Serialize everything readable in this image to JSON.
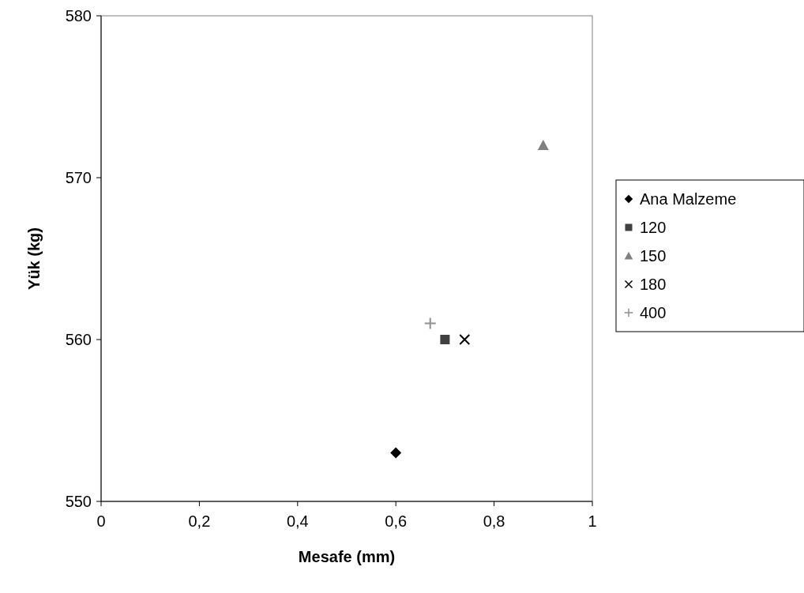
{
  "chart_data": {
    "type": "scatter",
    "xlabel": "Mesafe (mm)",
    "ylabel": "Yük (kg)",
    "xlim": [
      0,
      1
    ],
    "xticks": [
      0,
      {
        "value": 0.2,
        "label": "0,2"
      },
      {
        "value": 0.4,
        "label": "0,4"
      },
      {
        "value": 0.6,
        "label": "0,6"
      },
      {
        "value": 0.8,
        "label": "0,8"
      },
      1
    ],
    "ylim": [
      550,
      580
    ],
    "yticks": [
      550,
      560,
      570,
      580
    ],
    "grid": false,
    "legend": "right",
    "series": [
      {
        "name": "Ana Malzeme",
        "color": "#000000",
        "marker": "diamond",
        "x": [
          0.6
        ],
        "values": [
          553
        ]
      },
      {
        "name": "120",
        "color": "#404040",
        "marker": "square",
        "x": [
          0.7
        ],
        "values": [
          560
        ]
      },
      {
        "name": "150",
        "color": "#808080",
        "marker": "triangle",
        "x": [
          0.9
        ],
        "values": [
          572
        ]
      },
      {
        "name": "180",
        "color": "#000000",
        "marker": "cross",
        "x": [
          0.74
        ],
        "values": [
          560
        ]
      },
      {
        "name": "400",
        "color": "#909090",
        "marker": "plus",
        "x": [
          0.67
        ],
        "values": [
          561
        ]
      }
    ]
  }
}
